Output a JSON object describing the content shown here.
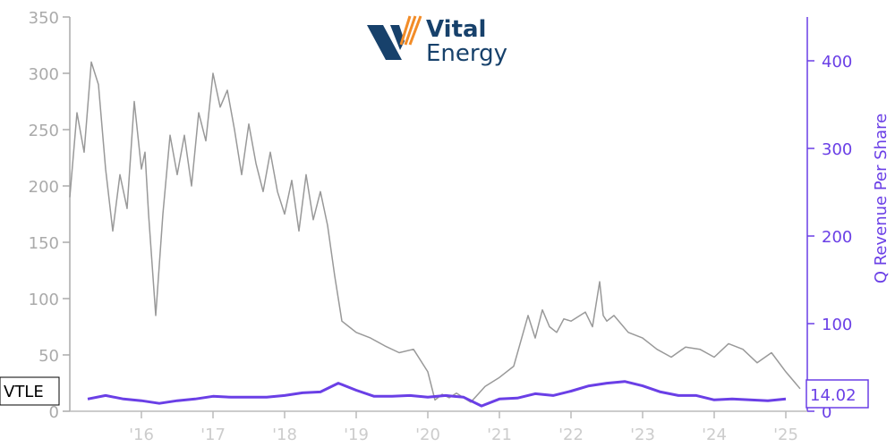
{
  "logo": {
    "line1": "Vital",
    "line2": "Energy"
  },
  "chart_data": {
    "type": "line",
    "ticker": "VTLE",
    "x_tick_labels": [
      "'16",
      "'17",
      "'18",
      "'19",
      "'20",
      "'21",
      "'22",
      "'23",
      "'24",
      "'25"
    ],
    "left_axis": {
      "ylim": [
        0,
        350
      ],
      "ticks": [
        0,
        50,
        100,
        150,
        200,
        250,
        300,
        350
      ]
    },
    "right_axis": {
      "label": "Q Revenue Per Share",
      "ylim": [
        0,
        450
      ],
      "ticks": [
        0,
        100,
        200,
        300,
        400
      ]
    },
    "last_value_label": "14.02",
    "colors": {
      "price": "#999999",
      "revenue": "#6a3fe6",
      "axis_left": "#aaaaaa",
      "axis_right": "#6a3fe6"
    },
    "series": [
      {
        "axis": "left",
        "x": [
          2015.0,
          2015.1,
          2015.2,
          2015.3,
          2015.4,
          2015.5,
          2015.6,
          2015.7,
          2015.8,
          2015.9,
          2016.0,
          2016.05,
          2016.1,
          2016.2,
          2016.3,
          2016.4,
          2016.5,
          2016.6,
          2016.7,
          2016.8,
          2016.9,
          2017.0,
          2017.1,
          2017.2,
          2017.3,
          2017.4,
          2017.5,
          2017.6,
          2017.7,
          2017.8,
          2017.9,
          2018.0,
          2018.1,
          2018.2,
          2018.3,
          2018.4,
          2018.5,
          2018.6,
          2018.7,
          2018.8,
          2018.9,
          2019.0,
          2019.2,
          2019.4,
          2019.6,
          2019.8,
          2020.0,
          2020.1,
          2020.2,
          2020.3,
          2020.4,
          2020.5,
          2020.6,
          2020.7,
          2020.8,
          2021.0,
          2021.2,
          2021.4,
          2021.5,
          2021.6,
          2021.7,
          2021.8,
          2021.9,
          2022.0,
          2022.2,
          2022.3,
          2022.4,
          2022.45,
          2022.5,
          2022.6,
          2022.8,
          2023.0,
          2023.2,
          2023.4,
          2023.6,
          2023.8,
          2024.0,
          2024.2,
          2024.4,
          2024.6,
          2024.8,
          2025.0,
          2025.2
        ],
        "values": [
          190,
          265,
          230,
          310,
          290,
          215,
          160,
          210,
          180,
          275,
          215,
          230,
          175,
          85,
          175,
          245,
          210,
          245,
          200,
          265,
          240,
          300,
          270,
          285,
          250,
          210,
          255,
          220,
          195,
          230,
          195,
          175,
          205,
          160,
          210,
          170,
          195,
          165,
          120,
          80,
          75,
          70,
          65,
          58,
          52,
          55,
          35,
          10,
          15,
          12,
          16,
          12,
          8,
          15,
          22,
          30,
          40,
          85,
          65,
          90,
          75,
          70,
          82,
          80,
          88,
          75,
          115,
          85,
          80,
          85,
          70,
          65,
          55,
          48,
          57,
          55,
          48,
          60,
          55,
          43,
          52,
          35,
          20
        ]
      },
      {
        "name": "Q Revenue Per Share",
        "axis": "right",
        "x": [
          2015.25,
          2015.5,
          2015.75,
          2016.0,
          2016.25,
          2016.5,
          2016.75,
          2017.0,
          2017.25,
          2017.5,
          2017.75,
          2018.0,
          2018.25,
          2018.5,
          2018.75,
          2019.0,
          2019.25,
          2019.5,
          2019.75,
          2020.0,
          2020.25,
          2020.5,
          2020.75,
          2021.0,
          2021.25,
          2021.5,
          2021.75,
          2022.0,
          2022.25,
          2022.5,
          2022.75,
          2023.0,
          2023.25,
          2023.5,
          2023.75,
          2024.0,
          2024.25,
          2024.5,
          2024.75,
          2025.0
        ],
        "values": [
          14,
          18,
          14,
          12,
          9,
          12,
          14,
          17,
          16,
          16,
          16,
          18,
          21,
          22,
          32,
          24,
          17,
          17,
          18,
          16,
          18,
          16,
          6,
          14,
          15,
          20,
          18,
          23,
          29,
          32,
          34,
          29,
          22,
          18,
          18,
          13,
          14,
          13,
          12,
          14.02
        ]
      }
    ]
  }
}
